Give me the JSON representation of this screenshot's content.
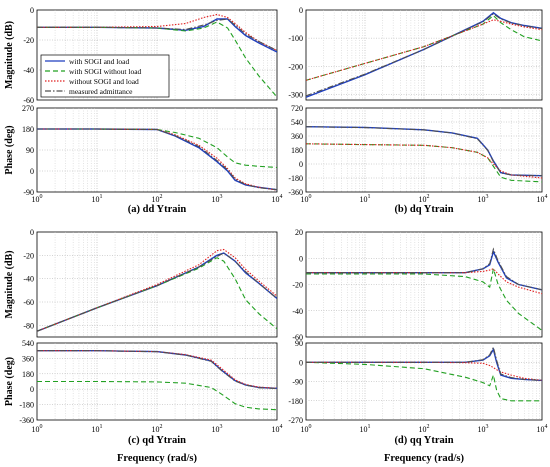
{
  "figure": {
    "xlabel_bottom": "Frequency (rad/s)"
  },
  "legend": {
    "entries": [
      {
        "label": "with SOGI and load",
        "color": "#1f3fbf",
        "dash": "solid"
      },
      {
        "label": "with SOGI without load",
        "color": "#22a022",
        "dash": "dashed"
      },
      {
        "label": "without SOGI and load",
        "color": "#e02020",
        "dash": "dotted"
      },
      {
        "label": "measured admittance",
        "color": "#505050",
        "dash": "dashdot"
      }
    ]
  },
  "chart_data": [
    {
      "type": "line",
      "title": "(a) dd Ytrain",
      "xscale": "log",
      "xlim": [
        1,
        10000
      ],
      "xticks": [
        "10^0",
        "10^1",
        "10^2",
        "10^3",
        "10^4"
      ],
      "magnitude": {
        "ylabel": "Magnitude (dB)",
        "ylim": [
          -60,
          0
        ],
        "yticks": [
          0,
          -20,
          -40,
          -60
        ],
        "x": [
          1,
          10,
          100,
          300,
          600,
          1000,
          1500,
          2000,
          3000,
          5000,
          10000
        ],
        "series": [
          {
            "values": [
              -11.5,
              -11.5,
              -12,
              -13.5,
              -11,
              -6,
              -6,
              -11,
              -17,
              -22,
              -28
            ]
          },
          {
            "values": [
              -11.5,
              -11.5,
              -12,
              -14,
              -12,
              -8,
              -12,
              -20,
              -32,
              -44,
              -58
            ]
          },
          {
            "values": [
              -11.5,
              -11.5,
              -11,
              -9,
              -5,
              -3,
              -5,
              -9,
              -15,
              -21,
              -27
            ]
          },
          {
            "values": [
              -11.5,
              -11.5,
              -12,
              -13,
              -10,
              -7,
              -6,
              -10,
              -16,
              -21,
              -27
            ]
          }
        ]
      },
      "phase": {
        "ylabel": "Phase (deg)",
        "ylim": [
          -90,
          270
        ],
        "yticks": [
          270,
          180,
          90,
          0,
          -90
        ],
        "x": [
          1,
          10,
          100,
          200,
          500,
          1000,
          1500,
          2000,
          3000,
          5000,
          10000
        ],
        "series": [
          {
            "values": [
              180,
              180,
              178,
              150,
              100,
              40,
              0,
              -40,
              -60,
              -70,
              -80
            ]
          },
          {
            "values": [
              180,
              180,
              178,
              165,
              140,
              100,
              60,
              35,
              25,
              20,
              15
            ]
          },
          {
            "values": [
              180,
              180,
              178,
              155,
              110,
              55,
              10,
              -30,
              -55,
              -70,
              -82
            ]
          },
          {
            "values": [
              180,
              180,
              178,
              152,
              105,
              45,
              5,
              -35,
              -58,
              -72,
              -80
            ]
          }
        ]
      }
    },
    {
      "type": "line",
      "title": "(b) dq Ytrain",
      "xscale": "log",
      "xlim": [
        1,
        10000
      ],
      "xticks": [
        "10^0",
        "10^1",
        "10^2",
        "10^3",
        "10^4"
      ],
      "magnitude": {
        "ylabel": "",
        "ylim": [
          -320,
          0
        ],
        "yticks": [
          0,
          -100,
          -200,
          -300
        ],
        "x": [
          1,
          10,
          100,
          1000,
          1500,
          2000,
          3000,
          5000,
          10000
        ],
        "series": [
          {
            "values": [
              -310,
              -230,
              -140,
              -40,
              -10,
              -30,
              -45,
              -55,
              -65
            ]
          },
          {
            "values": [
              -250,
              -190,
              -130,
              -50,
              -20,
              -45,
              -70,
              -95,
              -110
            ]
          },
          {
            "values": [
              -250,
              -190,
              -130,
              -50,
              -35,
              -40,
              -50,
              -60,
              -70
            ]
          },
          {
            "values": [
              -305,
              -228,
              -140,
              -42,
              -14,
              -32,
              -46,
              -56,
              -66
            ]
          }
        ]
      },
      "phase": {
        "ylabel": "",
        "ylim": [
          -360,
          720
        ],
        "yticks": [
          720,
          540,
          360,
          180,
          0,
          -180,
          -360
        ],
        "x": [
          1,
          10,
          100,
          300,
          800,
          1200,
          1500,
          2000,
          3000,
          10000
        ],
        "series": [
          {
            "values": [
              480,
              470,
              440,
              400,
              330,
              180,
              40,
              -110,
              -140,
              -150
            ]
          },
          {
            "values": [
              260,
              250,
              240,
              210,
              150,
              80,
              -30,
              -170,
              -210,
              -230
            ]
          },
          {
            "values": [
              260,
              250,
              240,
              210,
              150,
              80,
              0,
              -90,
              -140,
              -180
            ]
          },
          {
            "values": [
              480,
              468,
              438,
              398,
              325,
              175,
              30,
              -115,
              -142,
              -150
            ]
          }
        ]
      }
    },
    {
      "type": "line",
      "title": "(c) qd Ytrain",
      "xscale": "log",
      "xlim": [
        1,
        10000
      ],
      "xticks": [
        "10^0",
        "10^1",
        "10^2",
        "10^3",
        "10^4"
      ],
      "magnitude": {
        "ylabel": "Magnitude (dB)",
        "ylim": [
          -90,
          0
        ],
        "yticks": [
          0,
          -20,
          -40,
          -60,
          -80
        ],
        "x": [
          1,
          10,
          100,
          500,
          1000,
          1300,
          2000,
          3000,
          5000,
          10000
        ],
        "series": [
          {
            "values": [
              -85,
              -65,
              -46,
              -30,
              -20,
              -18,
              -25,
              -35,
              -44,
              -57
            ]
          },
          {
            "values": [
              -85,
              -65,
              -46,
              -31,
              -22,
              -25,
              -40,
              -58,
              -70,
              -83
            ]
          },
          {
            "values": [
              -85,
              -65,
              -45,
              -28,
              -16,
              -15,
              -22,
              -32,
              -42,
              -55
            ]
          },
          {
            "values": [
              -85,
              -65,
              -46,
              -30,
              -21,
              -18,
              -25,
              -34,
              -44,
              -57
            ]
          }
        ]
      },
      "phase": {
        "ylabel": "Phase (deg)",
        "ylim": [
          -360,
          540
        ],
        "yticks": [
          540,
          360,
          180,
          0,
          -180,
          -360
        ],
        "x": [
          1,
          10,
          100,
          300,
          800,
          1200,
          2000,
          3000,
          5000,
          10000
        ],
        "series": [
          {
            "values": [
              450,
              450,
              440,
              400,
              330,
              220,
              100,
              50,
              20,
              10
            ]
          },
          {
            "values": [
              90,
              90,
              85,
              70,
              20,
              -60,
              -170,
              -210,
              -230,
              -240
            ]
          },
          {
            "values": [
              450,
              450,
              440,
              405,
              340,
              240,
              110,
              55,
              25,
              10
            ]
          },
          {
            "values": [
              450,
              450,
              438,
              398,
              325,
              215,
              95,
              48,
              18,
              8
            ]
          }
        ]
      }
    },
    {
      "type": "line",
      "title": "(d) qq Ytrain",
      "xscale": "log",
      "xlim": [
        1,
        10000
      ],
      "xticks": [
        "10^0",
        "10^1",
        "10^2",
        "10^3",
        "10^4"
      ],
      "magnitude": {
        "ylabel": "",
        "ylim": [
          -60,
          20
        ],
        "yticks": [
          20,
          0,
          -20,
          -40,
          -60
        ],
        "x": [
          1,
          10,
          100,
          500,
          1000,
          1300,
          1500,
          1800,
          2500,
          4000,
          10000
        ],
        "series": [
          {
            "values": [
              -11,
              -11,
              -11,
              -11,
              -8,
              -5,
              5,
              -3,
              -15,
              -20,
              -24
            ]
          },
          {
            "values": [
              -12,
              -12,
              -12,
              -14,
              -18,
              -22,
              -8,
              -20,
              -32,
              -42,
              -55
            ]
          },
          {
            "values": [
              -11,
              -11,
              -11,
              -11,
              -10,
              -9,
              -8,
              -12,
              -18,
              -22,
              -27
            ]
          },
          {
            "values": [
              -11,
              -11,
              -11,
              -11,
              -8,
              -4,
              7,
              -2,
              -14,
              -20,
              -24
            ]
          }
        ]
      },
      "phase": {
        "ylabel": "",
        "ylim": [
          -270,
          90
        ],
        "yticks": [
          90,
          0,
          -90,
          -180,
          -270
        ],
        "x": [
          1,
          10,
          100,
          500,
          1000,
          1300,
          1500,
          1700,
          2000,
          3000,
          5000,
          10000
        ],
        "series": [
          {
            "values": [
              0,
              0,
              0,
              0,
              10,
              30,
              60,
              0,
              -60,
              -75,
              -80,
              -85
            ]
          },
          {
            "values": [
              0,
              -10,
              -30,
              -70,
              -95,
              -110,
              -60,
              -130,
              -170,
              -180,
              -180,
              -180
            ]
          },
          {
            "values": [
              0,
              0,
              0,
              -2,
              -5,
              -15,
              -25,
              -35,
              -45,
              -60,
              -75,
              -85
            ]
          },
          {
            "values": [
              0,
              0,
              0,
              0,
              12,
              35,
              70,
              10,
              -55,
              -72,
              -80,
              -85
            ]
          }
        ]
      }
    }
  ]
}
